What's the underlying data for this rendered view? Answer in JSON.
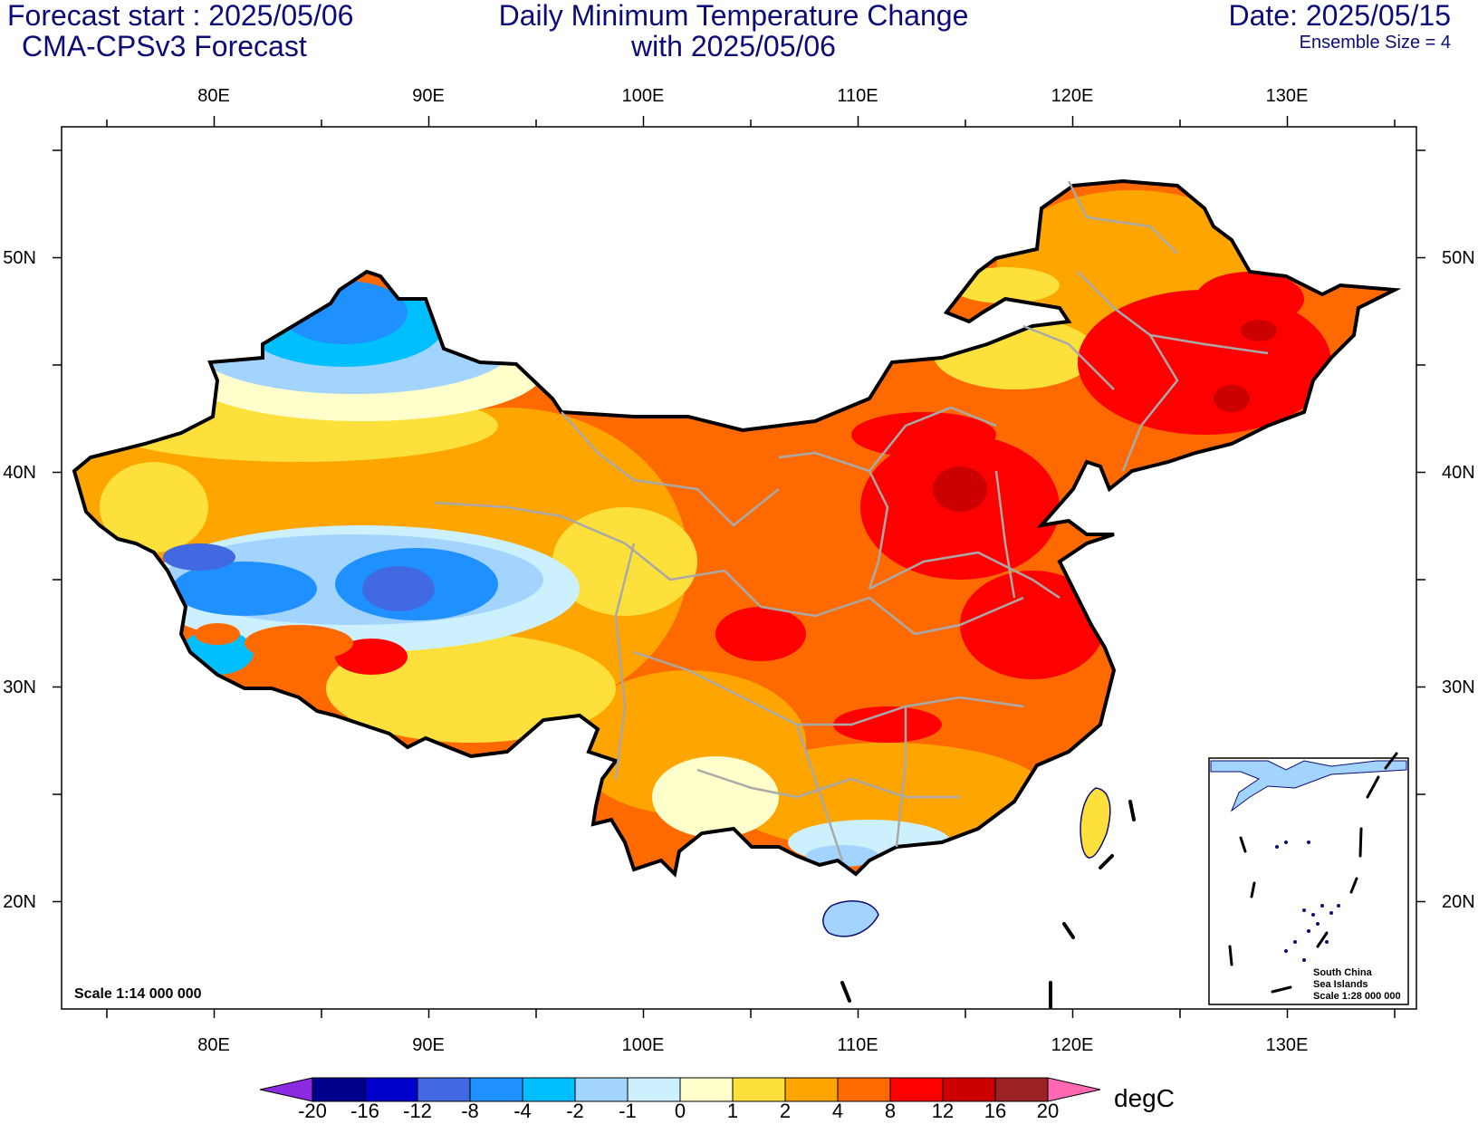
{
  "header": {
    "forecast_start": "Forecast start : 2025/05/06",
    "model": "CMA-CPSv3 Forecast",
    "title_line1": "Daily Minimum Temperature Change",
    "title_line2": "with 2025/05/06",
    "date": "Date: 2025/05/15",
    "ensemble": "Ensemble Size = 4"
  },
  "map": {
    "lon_ticks": [
      "80E",
      "90E",
      "100E",
      "110E",
      "120E",
      "130E"
    ],
    "lat_ticks": [
      "50N",
      "40N",
      "30N",
      "20N"
    ],
    "scale_label": "Scale 1:14 000 000",
    "inset": {
      "title": "South China",
      "subtitle": "Sea Islands",
      "scale": "Scale 1:28 000 000"
    },
    "ocean_color": "#ffffff",
    "border_color": "#000000",
    "province_color": "#a9a9a9"
  },
  "colorbar": {
    "unit": "degC",
    "labels": [
      "-20",
      "-16",
      "-12",
      "-8",
      "-4",
      "-2",
      "-1",
      "0",
      "1",
      "2",
      "4",
      "8",
      "12",
      "16",
      "20"
    ],
    "colors": [
      "#00008b",
      "#0000cd",
      "#4169e1",
      "#1e90ff",
      "#00bfff",
      "#a3d3ff",
      "#cdf0ff",
      "#ffffcc",
      "#fde03c",
      "#ffa500",
      "#ff6a00",
      "#ff0000",
      "#cc0000",
      "#9b2222"
    ],
    "under_color": "#8a2be2",
    "over_color": "#ff69b4"
  }
}
